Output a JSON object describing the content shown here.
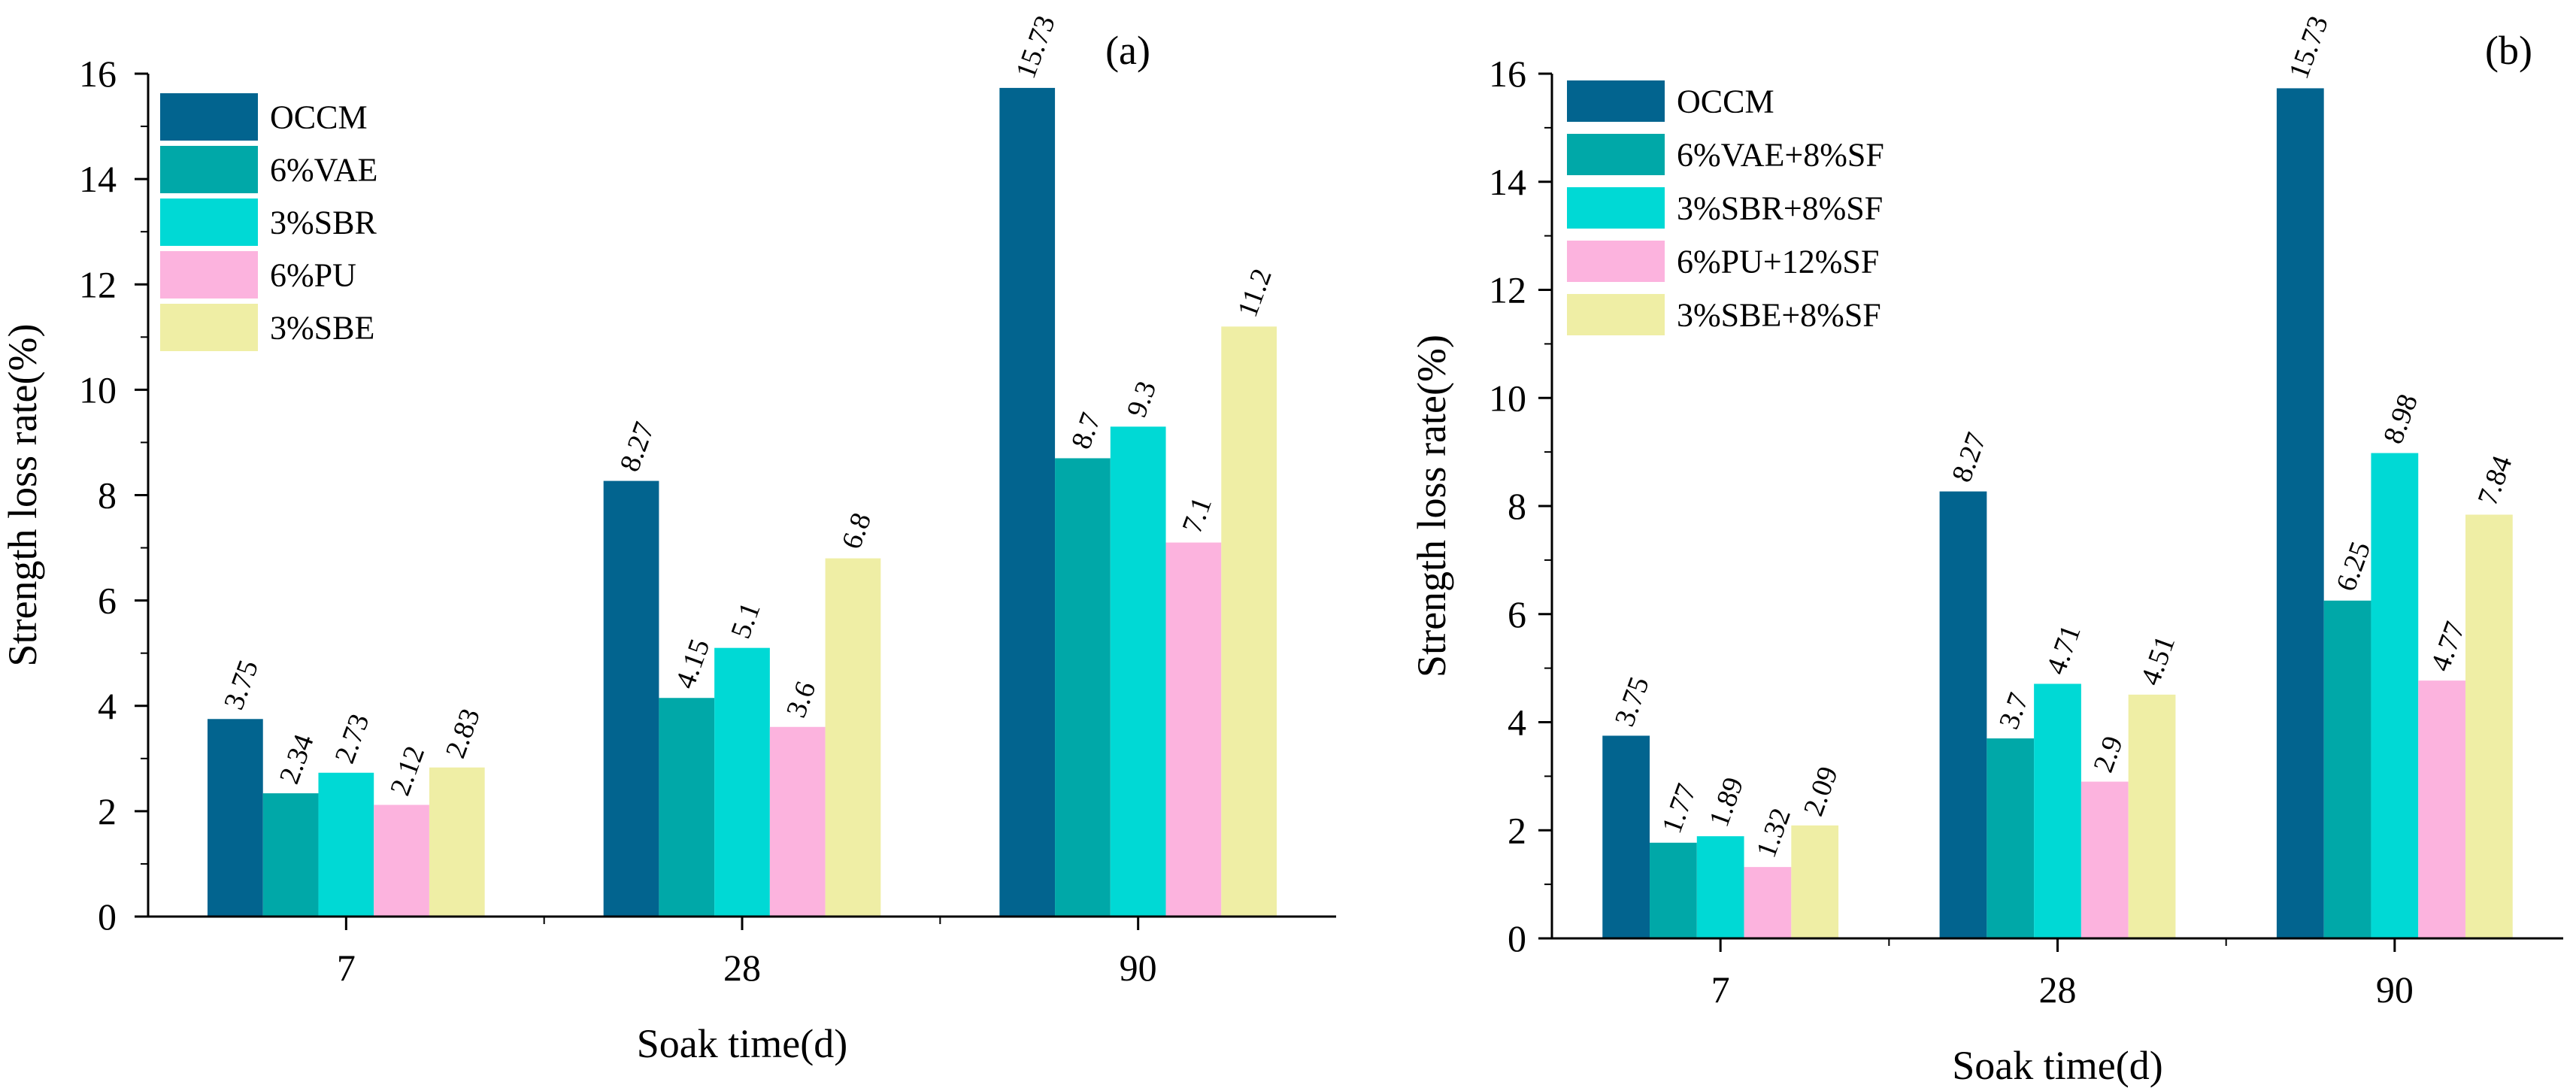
{
  "chart_data": [
    {
      "type": "bar",
      "panel_label": "(a)",
      "categories": [
        "7",
        "28",
        "90"
      ],
      "series": [
        {
          "name": "OCCM",
          "color": "#02648F",
          "values": [
            3.75,
            8.27,
            15.73
          ],
          "labels": [
            "3.75",
            "8.27",
            "15.73"
          ]
        },
        {
          "name": "6%VAE",
          "color": "#00A8A8",
          "values": [
            2.34,
            4.15,
            8.7
          ],
          "labels": [
            "2.34",
            "4.15",
            "8.7"
          ]
        },
        {
          "name": "3%SBR",
          "color": "#00D9D5",
          "values": [
            2.73,
            5.1,
            9.3
          ],
          "labels": [
            "2.73",
            "5.1",
            "9.3"
          ]
        },
        {
          "name": "6%PU",
          "color": "#FCB3DE",
          "values": [
            2.12,
            3.6,
            7.1
          ],
          "labels": [
            "2.12",
            "3.6",
            "7.1"
          ]
        },
        {
          "name": "3%SBE",
          "color": "#EFEEA5",
          "values": [
            2.83,
            6.8,
            11.2
          ],
          "labels": [
            "2.83",
            "6.8",
            "11.2"
          ]
        }
      ],
      "xlabel": "Soak time(d)",
      "ylabel": "Strength loss rate(%)",
      "ylim": [
        0,
        16
      ],
      "yticks": [
        "0",
        "2",
        "4",
        "6",
        "8",
        "10",
        "12",
        "14",
        "16"
      ],
      "grid": false,
      "legend": "top-left"
    },
    {
      "type": "bar",
      "panel_label": "(b)",
      "categories": [
        "7",
        "28",
        "90"
      ],
      "series": [
        {
          "name": "OCCM",
          "color": "#02648F",
          "values": [
            3.75,
            8.27,
            15.73
          ],
          "labels": [
            "3.75",
            "8.27",
            "15.73"
          ]
        },
        {
          "name": "6%VAE+8%SF",
          "color": "#00A8A8",
          "values": [
            1.77,
            3.7,
            6.25
          ],
          "labels": [
            "1.77",
            "3.7",
            "6.25"
          ]
        },
        {
          "name": "3%SBR+8%SF",
          "color": "#00D9D5",
          "values": [
            1.89,
            4.71,
            8.98
          ],
          "labels": [
            "1.89",
            "4.71",
            "8.98"
          ]
        },
        {
          "name": "6%PU+12%SF",
          "color": "#FCB3DE",
          "values": [
            1.32,
            2.9,
            4.77
          ],
          "labels": [
            "1.32",
            "2.9",
            "4.77"
          ]
        },
        {
          "name": "3%SBE+8%SF",
          "color": "#EFEEA5",
          "values": [
            2.09,
            4.51,
            7.84
          ],
          "labels": [
            "2.09",
            "4.51",
            "7.84"
          ]
        }
      ],
      "xlabel": "Soak time(d)",
      "ylabel": "Strength loss rate(%)",
      "ylim": [
        0,
        16
      ],
      "yticks": [
        "0",
        "2",
        "4",
        "6",
        "8",
        "10",
        "12",
        "14",
        "16"
      ],
      "grid": false,
      "legend": "top-left"
    }
  ]
}
